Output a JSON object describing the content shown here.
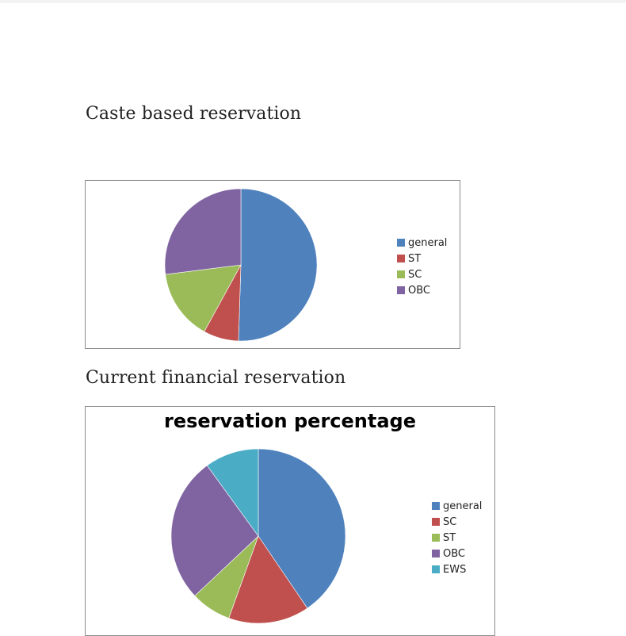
{
  "document": {
    "heading_1": "Caste based reservation",
    "heading_2": "Current financial reservation"
  },
  "chart_data": [
    {
      "type": "pie",
      "title": "",
      "categories": [
        "general",
        "ST",
        "SC",
        "OBC"
      ],
      "values": [
        50.5,
        7.5,
        15,
        27
      ],
      "colors": [
        "#4f81bd",
        "#c0504d",
        "#9bbb59",
        "#8064a2"
      ],
      "start_angle_deg": 0,
      "legend": "right"
    },
    {
      "type": "pie",
      "title": "reservation percentage",
      "categories": [
        "general",
        "SC",
        "ST",
        "OBC",
        "EWS"
      ],
      "values": [
        40.5,
        15,
        7.5,
        27,
        10
      ],
      "colors": [
        "#4f81bd",
        "#c0504d",
        "#9bbb59",
        "#8064a2",
        "#4bacc6"
      ],
      "start_angle_deg": 0,
      "legend": "right"
    }
  ]
}
